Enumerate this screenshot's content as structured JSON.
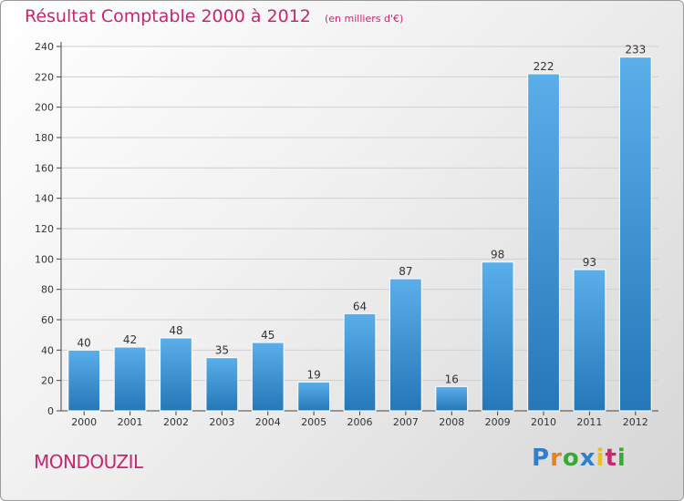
{
  "page": {
    "title": "Résultat Comptable 2000 à 2012",
    "unit_note": "(en milliers d'€)",
    "commune": "MONDOUZIL",
    "logo": {
      "text": "Proxiti",
      "letters": [
        {
          "char": "P",
          "color": "#2e7fd0"
        },
        {
          "char": "r",
          "color": "#e8821e"
        },
        {
          "char": "o",
          "color": "#39a935"
        },
        {
          "char": "x",
          "color": "#2e7fd0"
        },
        {
          "char": "i",
          "color": "#e8c31e"
        },
        {
          "char": "t",
          "color": "#c8266e"
        },
        {
          "char": "i",
          "color": "#39a935"
        }
      ]
    },
    "colors": {
      "title": "#c8266e",
      "bar_light": "#5aaeea",
      "bar_dark": "#2578b8"
    }
  },
  "chart_data": {
    "type": "bar",
    "title": "Résultat Comptable 2000 à 2012",
    "ylabel": "",
    "xlabel": "",
    "categories": [
      "2000",
      "2001",
      "2002",
      "2003",
      "2004",
      "2005",
      "2006",
      "2007",
      "2008",
      "2009",
      "2010",
      "2011",
      "2012"
    ],
    "values": [
      40,
      42,
      48,
      35,
      45,
      19,
      64,
      87,
      16,
      98,
      222,
      93,
      233
    ],
    "ylim": [
      0,
      240
    ],
    "yticks": [
      0,
      20,
      40,
      60,
      80,
      100,
      120,
      140,
      160,
      180,
      200,
      220,
      240
    ],
    "grid": true,
    "data_labels": true
  }
}
